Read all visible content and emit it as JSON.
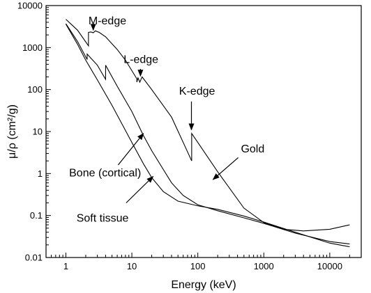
{
  "chart_data": {
    "type": "line",
    "title": "",
    "xlabel": "Energy (keV)",
    "ylabel": "μ/ρ  (cm²/g)",
    "x_scale": "log",
    "y_scale": "log",
    "xlim": [
      0.5,
      30000
    ],
    "ylim": [
      0.01,
      10000
    ],
    "x_ticks": [
      1,
      10,
      100,
      1000,
      10000
    ],
    "x_tick_labels": [
      "1",
      "10",
      "100",
      "1000",
      "10000"
    ],
    "y_ticks": [
      0.01,
      0.1,
      1,
      10,
      100,
      1000,
      10000
    ],
    "y_tick_labels": [
      "0.01",
      "0.1",
      "1",
      "10",
      "100",
      "1000",
      "10000"
    ],
    "grid": false,
    "series": [
      {
        "name": "Gold",
        "points": [
          [
            1,
            4700
          ],
          [
            1.5,
            2600
          ],
          [
            2.2,
            1100
          ],
          [
            2.2,
            2300
          ],
          [
            2.4,
            2350
          ],
          [
            2.6,
            2250
          ],
          [
            2.8,
            2500
          ],
          [
            3.2,
            2300
          ],
          [
            4,
            1800
          ],
          [
            6,
            900
          ],
          [
            8,
            500
          ],
          [
            11.9,
            180
          ],
          [
            11.9,
            150
          ],
          [
            12.4,
            190
          ],
          [
            13.2,
            150
          ],
          [
            14.3,
            200
          ],
          [
            20,
            100
          ],
          [
            40,
            22
          ],
          [
            80.7,
            2
          ],
          [
            80.7,
            9
          ],
          [
            100,
            5.5
          ],
          [
            200,
            1.1
          ],
          [
            500,
            0.15
          ],
          [
            1000,
            0.068
          ],
          [
            2000,
            0.047
          ],
          [
            4000,
            0.043
          ],
          [
            10000,
            0.047
          ],
          [
            20000,
            0.06
          ]
        ]
      },
      {
        "name": "Bone (cortical)",
        "points": [
          [
            1,
            3700
          ],
          [
            1.5,
            1400
          ],
          [
            2.1,
            520
          ],
          [
            2.1,
            700
          ],
          [
            3,
            380
          ],
          [
            4,
            175
          ],
          [
            4,
            380
          ],
          [
            6,
            120
          ],
          [
            10,
            30
          ],
          [
            15,
            8
          ],
          [
            20,
            3.5
          ],
          [
            40,
            0.6
          ],
          [
            60,
            0.3
          ],
          [
            100,
            0.18
          ],
          [
            200,
            0.13
          ],
          [
            500,
            0.088
          ],
          [
            1000,
            0.065
          ],
          [
            3000,
            0.038
          ],
          [
            10000,
            0.024
          ],
          [
            20000,
            0.021
          ]
        ]
      },
      {
        "name": "Soft tissue",
        "points": [
          [
            1,
            3600
          ],
          [
            1.5,
            1200
          ],
          [
            2,
            500
          ],
          [
            3,
            170
          ],
          [
            5,
            42
          ],
          [
            10,
            5.5
          ],
          [
            15,
            1.7
          ],
          [
            20,
            0.8
          ],
          [
            30,
            0.37
          ],
          [
            50,
            0.22
          ],
          [
            100,
            0.17
          ],
          [
            200,
            0.14
          ],
          [
            500,
            0.097
          ],
          [
            1000,
            0.07
          ],
          [
            3000,
            0.04
          ],
          [
            10000,
            0.022
          ],
          [
            20000,
            0.018
          ]
        ]
      }
    ],
    "annotations": [
      {
        "text": "M-edge",
        "label_at": [
          2.2,
          3600
        ],
        "arrow_from": [
          2.6,
          3000
        ],
        "arrow_to": [
          2.6,
          2600
        ]
      },
      {
        "text": "L-edge",
        "label_at": [
          7.5,
          430
        ],
        "arrow_from": [
          13.5,
          310
        ],
        "arrow_to": [
          13.5,
          210
        ]
      },
      {
        "text": "K-edge",
        "label_at": [
          52,
          75
        ],
        "arrow_from": [
          80,
          52
        ],
        "arrow_to": [
          80,
          11
        ]
      },
      {
        "text": "Gold",
        "label_at": [
          450,
          3.2
        ],
        "arrow_from": [
          410,
          2.4
        ],
        "arrow_to": [
          170,
          0.72
        ]
      },
      {
        "text": "Bone (cortical)",
        "label_at": [
          1.12,
          0.86
        ],
        "arrow_from": [
          6.2,
          1.6
        ],
        "arrow_to": [
          15,
          9
        ]
      },
      {
        "text": "Soft tissue",
        "label_at": [
          1.45,
          0.072
        ],
        "arrow_from": [
          8.2,
          0.2
        ],
        "arrow_to": [
          21,
          0.85
        ]
      }
    ]
  }
}
